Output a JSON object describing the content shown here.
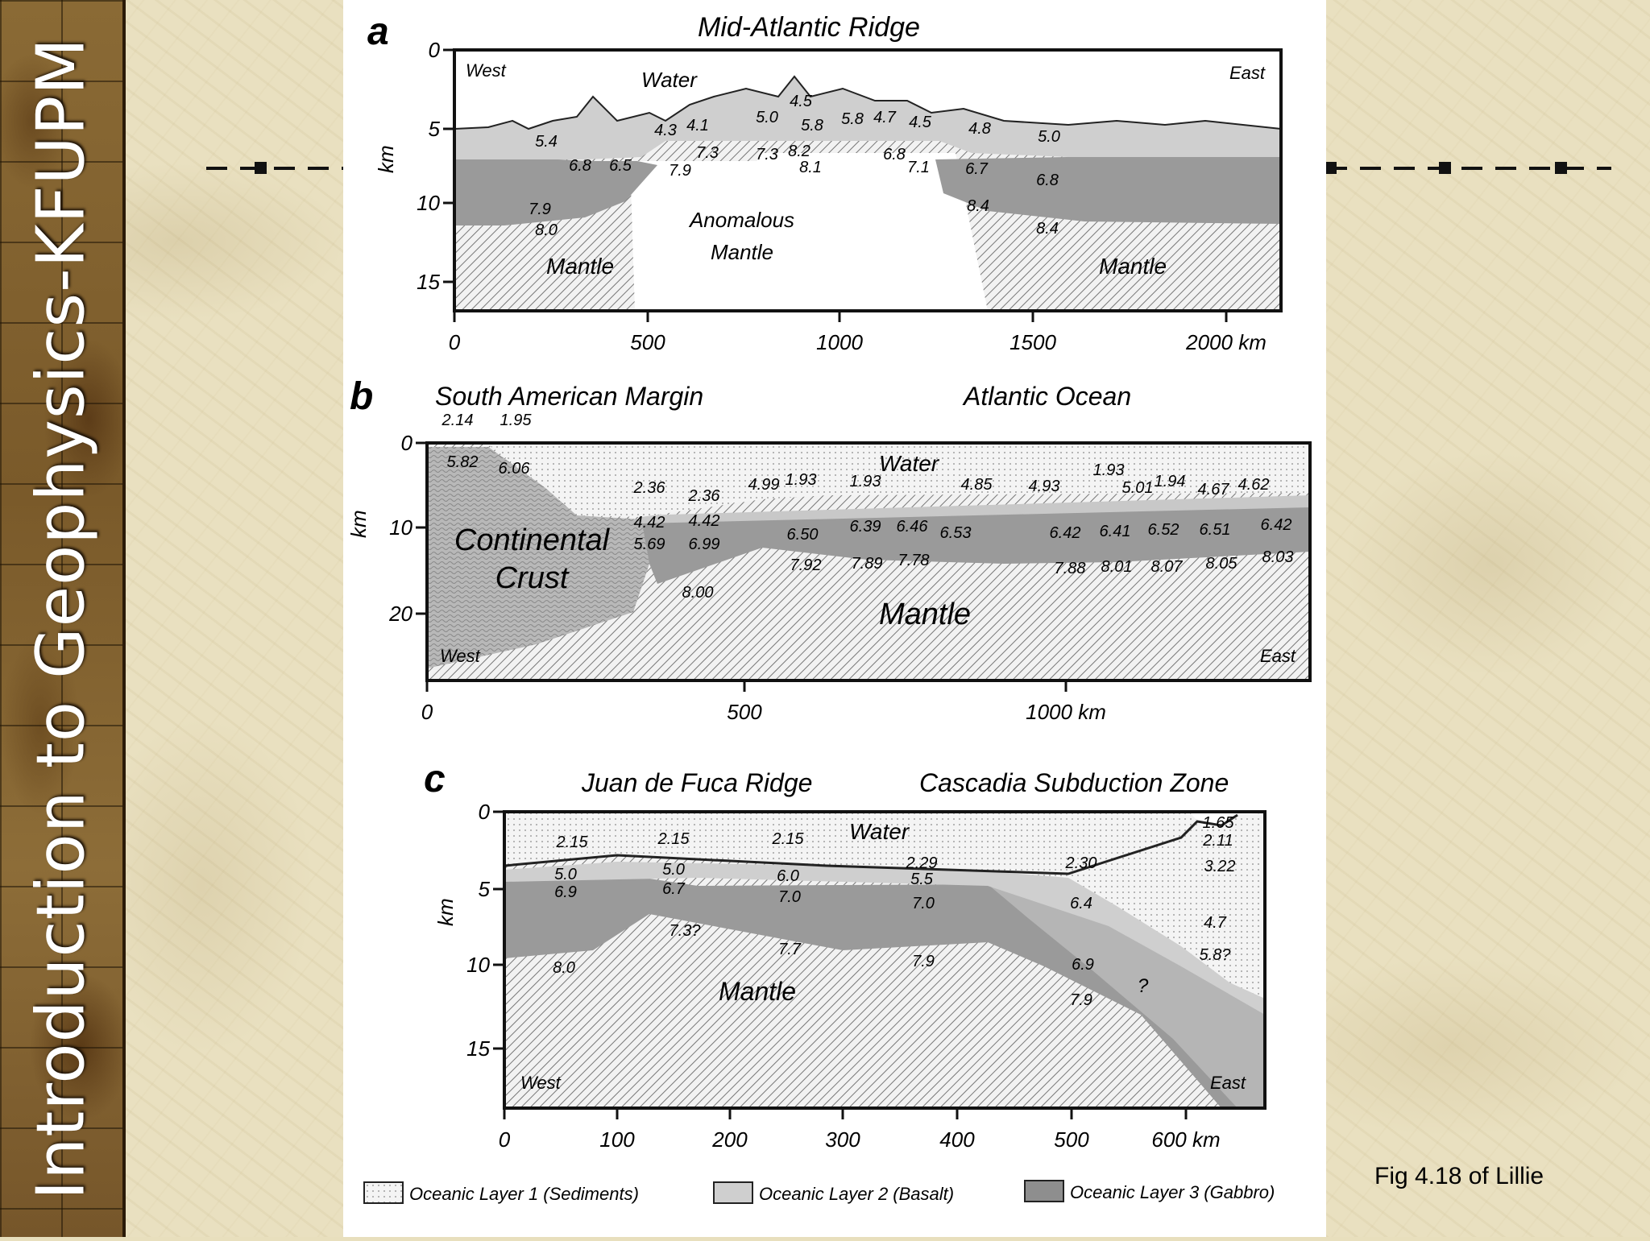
{
  "sidebar": {
    "title": "Introduction to Geophysics-KFUPM"
  },
  "caption": "Fig 4.18 of Lillie",
  "panels": {
    "a": {
      "letter": "a",
      "title": "Mid-Atlantic Ridge",
      "west": "West",
      "east": "East",
      "water": "Water",
      "anomalous1": "Anomalous",
      "anomalous2": "Mantle",
      "mantle": "Mantle",
      "ylabel": "km",
      "yticks": [
        "0",
        "5",
        "10",
        "15"
      ],
      "xticks": [
        "0",
        "500",
        "1000",
        "1500",
        "2000 km"
      ],
      "velocities": [
        "5.4",
        "4.3",
        "4.1",
        "5.0",
        "4.5",
        "5.8",
        "5.8",
        "4.7",
        "4.5",
        "4.8",
        "5.0",
        "6.8",
        "6.5",
        "7.9",
        "7.3",
        "7.3",
        "8.2",
        "8.1",
        "6.8",
        "7.1",
        "6.7",
        "6.8",
        "7.9",
        "8.0",
        "8.4",
        "8.4"
      ]
    },
    "b": {
      "letter": "b",
      "title_left": "South American Margin",
      "title_right": "Atlantic Ocean",
      "water": "Water",
      "crust1": "Continental",
      "crust2": "Crust",
      "mantle": "Mantle",
      "west": "West",
      "east": "East",
      "ylabel": "km",
      "yticks": [
        "0",
        "10",
        "20"
      ],
      "xticks": [
        "0",
        "500",
        "1000 km"
      ],
      "velocities": [
        "2.14",
        "1.95",
        "5.82",
        "6.06",
        "2.36",
        "2.36",
        "4.99",
        "1.93",
        "1.93",
        "4.85",
        "4.93",
        "1.93",
        "5.01",
        "1.94",
        "4.67",
        "4.62",
        "4.42",
        "4.42",
        "5.69",
        "6.99",
        "6.50",
        "6.39",
        "6.46",
        "6.53",
        "6.42",
        "6.41",
        "6.52",
        "6.51",
        "6.42",
        "8.00",
        "7.92",
        "7.89",
        "7.78",
        "7.88",
        "8.01",
        "8.07",
        "8.05",
        "8.03"
      ]
    },
    "c": {
      "letter": "c",
      "title_left": "Juan de Fuca Ridge",
      "title_right": "Cascadia Subduction Zone",
      "water": "Water",
      "mantle": "Mantle",
      "west": "West",
      "east": "East",
      "ylabel": "km",
      "question": "?",
      "yticks": [
        "0",
        "5",
        "10",
        "15"
      ],
      "xticks": [
        "0",
        "100",
        "200",
        "300",
        "400",
        "500",
        "600 km"
      ],
      "velocities": [
        "2.15",
        "2.15",
        "2.15",
        "2.29",
        "2.30",
        "1.65",
        "2.11",
        "3.22",
        "5.0",
        "5.0",
        "6.0",
        "5.5",
        "6.9",
        "6.7",
        "7.0",
        "7.0",
        "6.4",
        "4.7",
        "7.3?",
        "7.7",
        "7.9",
        "8.0",
        "6.9",
        "7.9",
        "5.8?"
      ]
    }
  },
  "legend": [
    {
      "label": "Oceanic Layer 1 (Sediments)"
    },
    {
      "label": "Oceanic Layer 2 (Basalt)"
    },
    {
      "label": "Oceanic Layer 3 (Gabbro)"
    }
  ]
}
